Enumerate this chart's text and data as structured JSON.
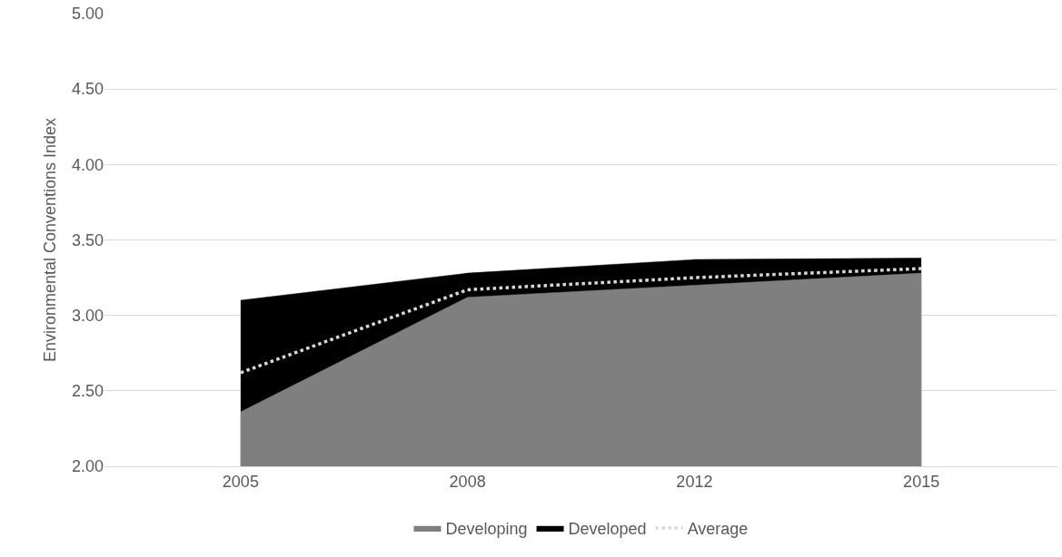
{
  "chart_data": {
    "type": "area",
    "ylabel": "Environmental Conventions Index",
    "categories": [
      "2005",
      "2008",
      "2012",
      "2015"
    ],
    "series": [
      {
        "name": "Developing",
        "color": "#7f7f7f",
        "values": [
          2.36,
          3.12,
          3.2,
          3.28
        ]
      },
      {
        "name": "Developed",
        "color": "#000000",
        "values": [
          3.1,
          3.28,
          3.37,
          3.38
        ]
      },
      {
        "name": "Average",
        "type": "line",
        "color": "#d9d9d9",
        "line_style": "dotted",
        "values": [
          2.62,
          3.17,
          3.25,
          3.31
        ]
      }
    ],
    "ylim": [
      2,
      5
    ],
    "yticks": [
      {
        "value": 2,
        "label": "2.00"
      },
      {
        "value": 2.5,
        "label": "2.50"
      },
      {
        "value": 3,
        "label": "3.00"
      },
      {
        "value": 3.5,
        "label": "3.50"
      },
      {
        "value": 4,
        "label": "4.00"
      },
      {
        "value": 4.5,
        "label": "4.50"
      },
      {
        "value": 5,
        "label": "5.00"
      }
    ],
    "grid": "y",
    "legend": "bottom",
    "marker": "none"
  }
}
